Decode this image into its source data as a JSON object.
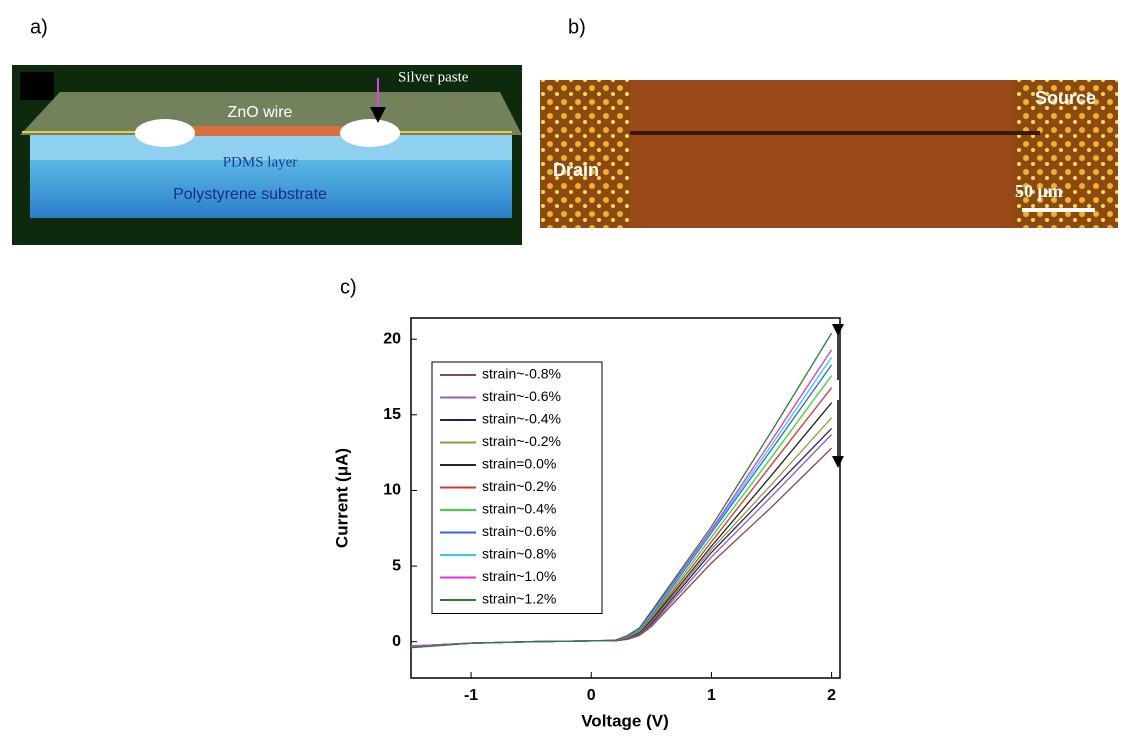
{
  "panel_a": {
    "label": "a)",
    "silver_paste": "Silver paste",
    "zno_wire": "ZnO wire",
    "pdms_layer": "PDMS layer",
    "substrate": "Polystyrene substrate"
  },
  "panel_b": {
    "label": "b)",
    "source": "Source",
    "drain": "Drain",
    "scale_bar": "50 μm"
  },
  "panel_c": {
    "label": "c)"
  },
  "chart_data": {
    "type": "line",
    "x_label": "Voltage (V)",
    "y_label": "Current (μA)",
    "x": [
      -1.5,
      -1,
      -0.5,
      0,
      0.2,
      0.3,
      0.4,
      0.5,
      1,
      1.5,
      2
    ],
    "xlim": [
      -1.5,
      2.07
    ],
    "ylim": [
      -2.4,
      21.4
    ],
    "xticks": [
      -1,
      0,
      1,
      2
    ],
    "yticks": [
      0,
      5,
      10,
      15,
      20
    ],
    "legend": "upper left",
    "series": [
      {
        "name": "strain~-0.8%",
        "color": "#8b4a4a",
        "values": [
          -0.3,
          -0.1,
          0,
          0.05,
          0.05,
          0.15,
          0.4,
          1.0,
          5.2,
          8.9,
          12.8
        ]
      },
      {
        "name": "strain~-0.6%",
        "color": "#9a5fb0",
        "values": [
          -0.3,
          -0.1,
          0,
          0.05,
          0.05,
          0.18,
          0.45,
          1.1,
          5.6,
          9.6,
          13.7
        ]
      },
      {
        "name": "strain~-0.4%",
        "color": "#1a237e",
        "values": [
          -0.3,
          -0.1,
          0,
          0.05,
          0.05,
          0.2,
          0.5,
          1.2,
          5.9,
          10.0,
          14.1
        ]
      },
      {
        "name": "strain~-0.2%",
        "color": "#9a9a3a",
        "values": [
          -0.3,
          -0.1,
          0,
          0.05,
          0.06,
          0.22,
          0.55,
          1.3,
          6.1,
          10.4,
          14.8
        ]
      },
      {
        "name": "strain=0.0%",
        "color": "#222222",
        "values": [
          -0.3,
          -0.1,
          0,
          0.05,
          0.06,
          0.25,
          0.6,
          1.4,
          6.3,
          11.0,
          15.8
        ]
      },
      {
        "name": "strain~0.2%",
        "color": "#e03030",
        "values": [
          -0.3,
          -0.1,
          0,
          0.05,
          0.07,
          0.28,
          0.65,
          1.5,
          6.6,
          11.7,
          16.8
        ]
      },
      {
        "name": "strain~0.4%",
        "color": "#33dd33",
        "values": [
          -0.3,
          -0.1,
          0,
          0.05,
          0.08,
          0.3,
          0.7,
          1.6,
          6.9,
          12.2,
          17.6
        ]
      },
      {
        "name": "strain~0.6%",
        "color": "#3060ff",
        "values": [
          -0.3,
          -0.1,
          0,
          0.05,
          0.08,
          0.32,
          0.75,
          1.7,
          7.2,
          12.7,
          18.3
        ]
      },
      {
        "name": "strain~0.8%",
        "color": "#30d0e0",
        "values": [
          -0.3,
          -0.1,
          0,
          0.05,
          0.09,
          0.34,
          0.8,
          1.8,
          7.3,
          13.0,
          18.8
        ]
      },
      {
        "name": "strain~1.0%",
        "color": "#e030e0",
        "values": [
          -0.3,
          -0.1,
          0,
          0.05,
          0.1,
          0.36,
          0.85,
          1.9,
          7.4,
          13.3,
          19.3
        ]
      },
      {
        "name": "strain~1.2%",
        "color": "#2e7d32",
        "values": [
          -0.4,
          -0.1,
          0,
          0.05,
          0.1,
          0.4,
          0.9,
          2.0,
          7.6,
          13.9,
          20.4
        ]
      }
    ]
  }
}
